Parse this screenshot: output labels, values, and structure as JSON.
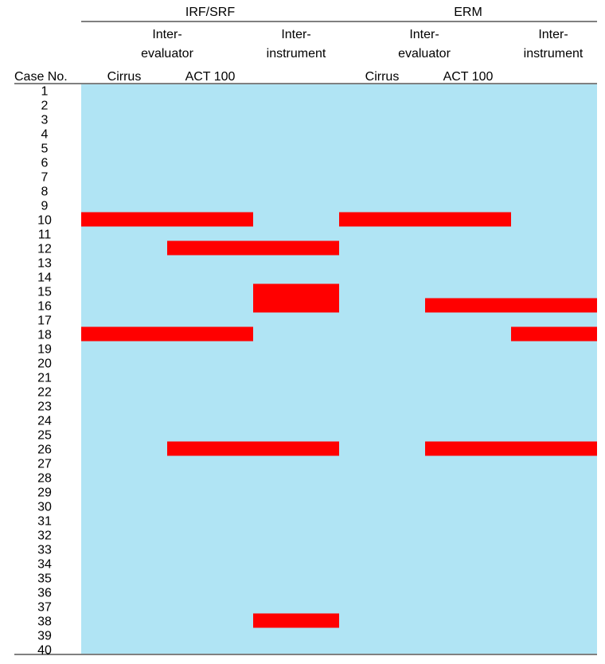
{
  "chart_data": {
    "type": "heatmap",
    "headers": {
      "groups": [
        {
          "label": "IRF/SRF"
        },
        {
          "label": "ERM"
        }
      ],
      "subgroups": [
        {
          "line1": "Inter-",
          "line2": "evaluator"
        },
        {
          "line1": "Inter-",
          "line2": "instrument"
        },
        {
          "line1": "Inter-",
          "line2": "evaluator"
        },
        {
          "line1": "Inter-",
          "line2": "instrument"
        }
      ],
      "row_header": "Case No.",
      "columns": [
        "Cirrus",
        "ACT 100",
        "",
        "Cirrus",
        "ACT 100",
        ""
      ]
    },
    "rows": [
      "1",
      "2",
      "3",
      "4",
      "5",
      "6",
      "7",
      "8",
      "9",
      "10",
      "11",
      "12",
      "13",
      "14",
      "15",
      "16",
      "17",
      "18",
      "19",
      "20",
      "21",
      "22",
      "23",
      "24",
      "25",
      "26",
      "27",
      "28",
      "29",
      "30",
      "31",
      "32",
      "33",
      "34",
      "35",
      "36",
      "37",
      "38",
      "39",
      "40"
    ],
    "background_color": "#b0e4f4",
    "highlight_color": "#ff0000",
    "highlights": [
      {
        "case": 10,
        "columns": [
          0,
          1
        ]
      },
      {
        "case": 10,
        "columns": [
          3,
          4
        ]
      },
      {
        "case": 12,
        "columns": [
          1,
          2
        ]
      },
      {
        "case": 15,
        "columns": [
          2
        ]
      },
      {
        "case": 16,
        "columns": [
          2
        ]
      },
      {
        "case": 16,
        "columns": [
          4,
          5
        ]
      },
      {
        "case": 18,
        "columns": [
          0,
          1
        ]
      },
      {
        "case": 18,
        "columns": [
          5
        ]
      },
      {
        "case": 26,
        "columns": [
          1,
          2
        ]
      },
      {
        "case": 26,
        "columns": [
          4,
          5
        ]
      },
      {
        "case": 38,
        "columns": [
          2
        ]
      }
    ]
  }
}
